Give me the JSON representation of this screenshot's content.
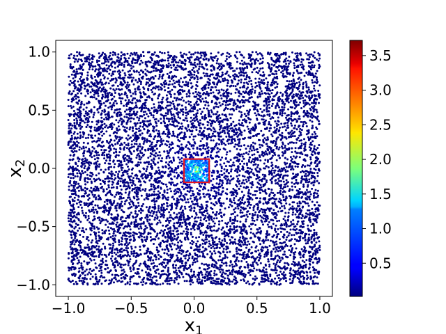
{
  "chart_data": {
    "type": "scatter",
    "title": "",
    "xlabel_base": "x",
    "xlabel_sub": "1",
    "ylabel_base": "x",
    "ylabel_sub": "2",
    "xlim": [
      -1.1,
      1.1
    ],
    "ylim": [
      -1.1,
      1.1
    ],
    "x_ticks": [
      {
        "value": -1.0,
        "label": "−1.0"
      },
      {
        "value": -0.5,
        "label": "−0.5"
      },
      {
        "value": 0.0,
        "label": "0.0"
      },
      {
        "value": 0.5,
        "label": "0.5"
      },
      {
        "value": 1.0,
        "label": "1.0"
      }
    ],
    "y_ticks": [
      {
        "value": -1.0,
        "label": "−1.0"
      },
      {
        "value": -0.5,
        "label": "−0.5"
      },
      {
        "value": 0.0,
        "label": "0.0"
      },
      {
        "value": 0.5,
        "label": "0.5"
      },
      {
        "value": 1.0,
        "label": "1.0"
      }
    ],
    "point_domain": {
      "x": [
        -1.0,
        1.0
      ],
      "y": [
        -1.0,
        1.0
      ]
    },
    "hotspot_center": [
      0.02,
      -0.02
    ],
    "highlight_box": {
      "x0": -0.08,
      "x1": 0.12,
      "y0": -0.12,
      "y1": 0.08,
      "color": "#e8141c"
    },
    "colormap": "jet",
    "colorbar": {
      "min": 0.02,
      "max": 3.72,
      "ticks": [
        {
          "value": 0.5,
          "label": "0.5"
        },
        {
          "value": 1.0,
          "label": "1.0"
        },
        {
          "value": 1.5,
          "label": "1.5"
        },
        {
          "value": 2.0,
          "label": "2.0"
        },
        {
          "value": 2.5,
          "label": "2.5"
        },
        {
          "value": 3.0,
          "label": "3.0"
        },
        {
          "value": 3.5,
          "label": "3.5"
        }
      ]
    }
  }
}
